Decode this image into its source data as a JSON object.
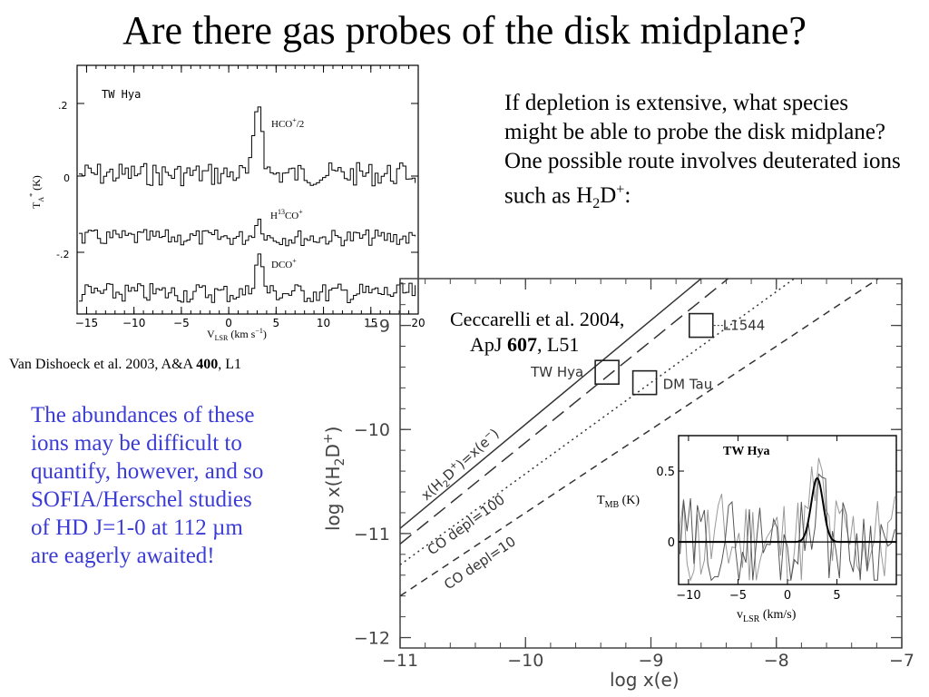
{
  "title": "Are there gas probes of the disk midplane?",
  "intro": {
    "text": "If depletion is extensive, what species might be able to probe the disk midplane? One possible route involves deuterated ions such as",
    "species_H": "H",
    "species_sub": "2",
    "species_D": "D",
    "species_sup": "+",
    "end": ":"
  },
  "citations": {
    "ceccarelli_line1": "Ceccarelli et al. 2004,",
    "ceccarelli_journal": "ApJ ",
    "ceccarelli_volume": "607",
    "ceccarelli_page": ", L51",
    "vandishoeck_text": "Van  Dishoeck et al. 2003, A&A ",
    "vandishoeck_volume": "400",
    "vandishoeck_page": ", L1"
  },
  "note": {
    "text": "The abundances of these ions may be difficult to quantify, however, and so SOFIA/Herschel studies of HD J=1-0 at 112 µm are eagerly awaited!",
    "color": "#3b3bd6"
  },
  "spectra_plot": {
    "source_label": "TW Hya",
    "ylabel": "T",
    "ylabel_sub": "A",
    "ylabel_sup": "*",
    "ylabel_unit": " (K)",
    "ytick_labels": [
      ".2",
      "0",
      "-.2"
    ],
    "xtick_labels": [
      "−15",
      "−10",
      "−5",
      "0",
      "5",
      "10",
      "15",
      "20"
    ],
    "xlabel": "V",
    "xlabel_sub": "LSR",
    "xlabel_unit": " (km s",
    "xlabel_exp": "−1",
    "xlabel_end": ")",
    "line_labels": [
      {
        "pre": "HCO",
        "sup": "+",
        "post": "/2"
      },
      {
        "pre": "H",
        "sup": "13",
        "post": "CO",
        "sup2": "+"
      },
      {
        "pre": "DCO",
        "sup": "+",
        "post": ""
      }
    ]
  },
  "chart_data": {
    "type": "line",
    "title": "",
    "xlabel": "log  x(e)",
    "ylabel": "log  x(H2D+)",
    "xlim": [
      -11,
      -7
    ],
    "ylim": [
      -12.1,
      -8.55
    ],
    "xticks": [
      -11,
      -10,
      -9,
      -8,
      -7
    ],
    "yticks": [
      -9,
      -10,
      -11,
      -12
    ],
    "xtick_labels": [
      "−11",
      "−10",
      "−9",
      "−8",
      "−7"
    ],
    "ytick_labels": [
      "−9",
      "−10",
      "−11",
      "−12"
    ],
    "series": [
      {
        "name": "x(H2D+)=x(e−)",
        "style": "solid",
        "x": [
          -11,
          -7
        ],
        "y": [
          -10.95,
          -6.95
        ]
      },
      {
        "name": "",
        "style": "longdash",
        "x": [
          -11,
          -7
        ],
        "y": [
          -11.1,
          -7.2
        ]
      },
      {
        "name": "CO depl=100",
        "style": "dotted",
        "x": [
          -11,
          -7
        ],
        "y": [
          -11.3,
          -7.8
        ]
      },
      {
        "name": "CO depl=10",
        "style": "dashed",
        "x": [
          -11,
          -7
        ],
        "y": [
          -11.6,
          -8.4
        ]
      }
    ],
    "line_labels": [
      {
        "text": "x(H",
        "sub": "2",
        "mid": "D",
        "sup": "+",
        "end": ")=x(e",
        "sup2": "−",
        "end2": ")"
      },
      {
        "text": "CO depl=100"
      },
      {
        "text": "CO depl=10"
      }
    ],
    "objects": [
      {
        "name": "TW Hya",
        "x": -9.35,
        "y": -9.45
      },
      {
        "name": "DM Tau",
        "x": -9.05,
        "y": -9.55
      },
      {
        "name": "L1544",
        "x": -8.6,
        "y": -9.0
      }
    ],
    "inset": {
      "title": "TW Hya",
      "xlabel": "v",
      "xlabel_sub": "LSR",
      "xlabel_unit": " (km/s)",
      "ylabel": "T",
      "ylabel_sub": "MB",
      "ylabel_unit": " (K)",
      "xlim": [
        -11,
        11
      ],
      "ylim": [
        -0.3,
        0.75
      ],
      "xticks": [
        -10,
        -5,
        0,
        5
      ],
      "xtick_labels": [
        "−10",
        "−5",
        "0",
        "5"
      ],
      "yticks": [
        0,
        0.5
      ],
      "ytick_labels": [
        "0",
        "0.5"
      ],
      "fit": {
        "amplitude": 0.45,
        "center": 3.0,
        "sigma": 0.6
      }
    }
  }
}
